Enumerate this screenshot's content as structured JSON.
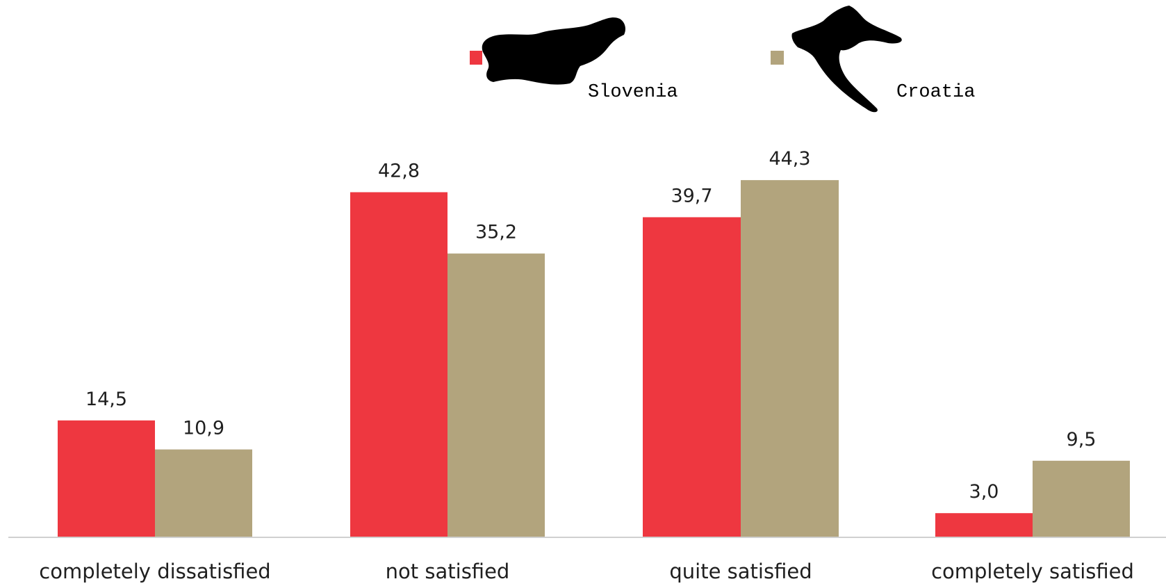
{
  "chart_data": {
    "type": "bar",
    "categories": [
      "completely dissatisfied",
      "not satisfied",
      "quite satisfied",
      "completely satisfied"
    ],
    "series": [
      {
        "name": "Slovenia",
        "color": "#EE3740",
        "values": [
          14.5,
          42.8,
          39.7,
          3.0
        ],
        "labels": [
          "14,5",
          "42,8",
          "39,7",
          "3,0"
        ]
      },
      {
        "name": "Croatia",
        "color": "#B2A47D",
        "values": [
          10.9,
          35.2,
          44.3,
          9.5
        ],
        "labels": [
          "10,9",
          "35,2",
          "44,3",
          "9,5"
        ]
      }
    ],
    "ylim": [
      0,
      50
    ],
    "grid": false,
    "legend_position": "top-center",
    "legend_icons": [
      "slovenia-map-silhouette",
      "croatia-map-silhouette"
    ]
  }
}
